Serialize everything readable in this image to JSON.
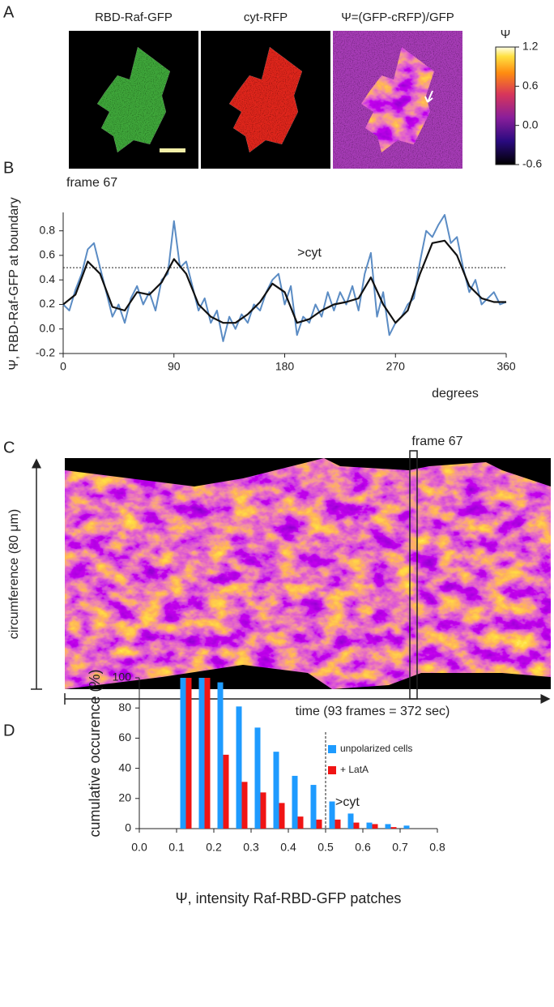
{
  "panel_labels": [
    "A",
    "B",
    "C",
    "D"
  ],
  "panel_a": {
    "image_titles": [
      "RBD-Raf-GFP",
      "cyt-RFP",
      "Ψ=(GFP-cRFP)/GFP"
    ],
    "colorbar": {
      "title": "Ψ",
      "lim": [
        -0.6,
        1.2
      ],
      "ticks": [
        1.2,
        0.6,
        {
          "value": 0,
          "label": "0.0"
        },
        -0.6
      ]
    }
  },
  "panel_c": {
    "frame_label": "frame 67",
    "y_label": "circumference (80 μm)",
    "x_label": "time (93 frames = 372 sec)"
  },
  "chart_data": [
    {
      "type": "line",
      "subtitle": "frame 67",
      "y_label": "Ψ, RBD-Raf-GFP at boundary",
      "x_label": "degrees",
      "xlim": [
        0,
        360
      ],
      "xticks": [
        0,
        90,
        180,
        270,
        360
      ],
      "ylim": [
        -0.2,
        0.95
      ],
      "yticks": [
        -0.2,
        {
          "value": 0,
          "label": "0.0"
        },
        0.2,
        0.4,
        0.6,
        0.8
      ],
      "reference_line": {
        "value": 0.5,
        "label": ">cyt"
      },
      "series": [
        {
          "color": "#5b8cc4",
          "x": [
            0,
            5,
            10,
            15,
            20,
            25,
            30,
            35,
            40,
            45,
            50,
            55,
            60,
            65,
            70,
            75,
            80,
            85,
            90,
            95,
            100,
            105,
            110,
            115,
            120,
            125,
            130,
            135,
            140,
            145,
            150,
            155,
            160,
            165,
            170,
            175,
            180,
            185,
            190,
            195,
            200,
            205,
            210,
            215,
            220,
            225,
            230,
            235,
            240,
            245,
            250,
            255,
            260,
            265,
            270,
            275,
            280,
            285,
            290,
            295,
            300,
            305,
            310,
            315,
            320,
            325,
            330,
            335,
            340,
            345,
            350,
            355,
            360
          ],
          "values": [
            0.2,
            0.15,
            0.32,
            0.45,
            0.65,
            0.7,
            0.5,
            0.3,
            0.1,
            0.2,
            0.05,
            0.25,
            0.35,
            0.2,
            0.3,
            0.15,
            0.4,
            0.45,
            0.88,
            0.5,
            0.55,
            0.35,
            0.15,
            0.25,
            0.05,
            0.15,
            -0.1,
            0.1,
            0.0,
            0.12,
            0.05,
            0.2,
            0.15,
            0.3,
            0.4,
            0.45,
            0.2,
            0.35,
            -0.05,
            0.1,
            0.05,
            0.2,
            0.1,
            0.3,
            0.15,
            0.3,
            0.2,
            0.35,
            0.15,
            0.45,
            0.62,
            0.1,
            0.3,
            -0.05,
            0.05,
            0.1,
            0.2,
            0.25,
            0.55,
            0.8,
            0.75,
            0.85,
            0.93,
            0.7,
            0.75,
            0.5,
            0.3,
            0.4,
            0.2,
            0.25,
            0.3,
            0.2,
            0.22
          ]
        },
        {
          "color": "#111111",
          "x": [
            0,
            10,
            20,
            30,
            40,
            50,
            60,
            70,
            80,
            90,
            100,
            110,
            120,
            130,
            140,
            150,
            160,
            170,
            180,
            190,
            200,
            210,
            220,
            230,
            240,
            250,
            260,
            270,
            280,
            290,
            300,
            310,
            320,
            330,
            340,
            350,
            360
          ],
          "values": [
            0.2,
            0.28,
            0.55,
            0.45,
            0.18,
            0.15,
            0.3,
            0.28,
            0.38,
            0.57,
            0.45,
            0.2,
            0.1,
            0.05,
            0.05,
            0.12,
            0.22,
            0.37,
            0.3,
            0.05,
            0.08,
            0.15,
            0.2,
            0.22,
            0.25,
            0.42,
            0.2,
            0.05,
            0.15,
            0.45,
            0.7,
            0.72,
            0.6,
            0.35,
            0.25,
            0.22,
            0.22
          ]
        }
      ]
    },
    {
      "type": "bar",
      "y_label": "cumulative occurence (%)",
      "x_label": "Ψ, intensity Raf-RBD-GFP patches",
      "xlim": [
        0,
        0.8
      ],
      "xticks": [
        {
          "value": 0,
          "label": "0.0"
        },
        0.1,
        0.2,
        0.3,
        0.4,
        0.5,
        0.6,
        0.7,
        0.8
      ],
      "ylim": [
        0,
        100
      ],
      "yticks": [
        0,
        20,
        40,
        60,
        80,
        100
      ],
      "reference_line": {
        "value": 0.5,
        "label": ">cyt"
      },
      "legend": "upper right",
      "x": [
        0.125,
        0.175,
        0.225,
        0.275,
        0.325,
        0.375,
        0.425,
        0.475,
        0.525,
        0.575,
        0.625,
        0.675,
        0.725
      ],
      "series": [
        {
          "name": "unpolarized cells",
          "color": "#1e9bff",
          "values": [
            100,
            100,
            97,
            81,
            67,
            51,
            35,
            29,
            18,
            10,
            4,
            3,
            2
          ]
        },
        {
          "name": "+ LatA",
          "color": "#f01414",
          "values": [
            100,
            100,
            49,
            31,
            24,
            17,
            8,
            6,
            6,
            4,
            3,
            1,
            0
          ]
        }
      ]
    }
  ]
}
